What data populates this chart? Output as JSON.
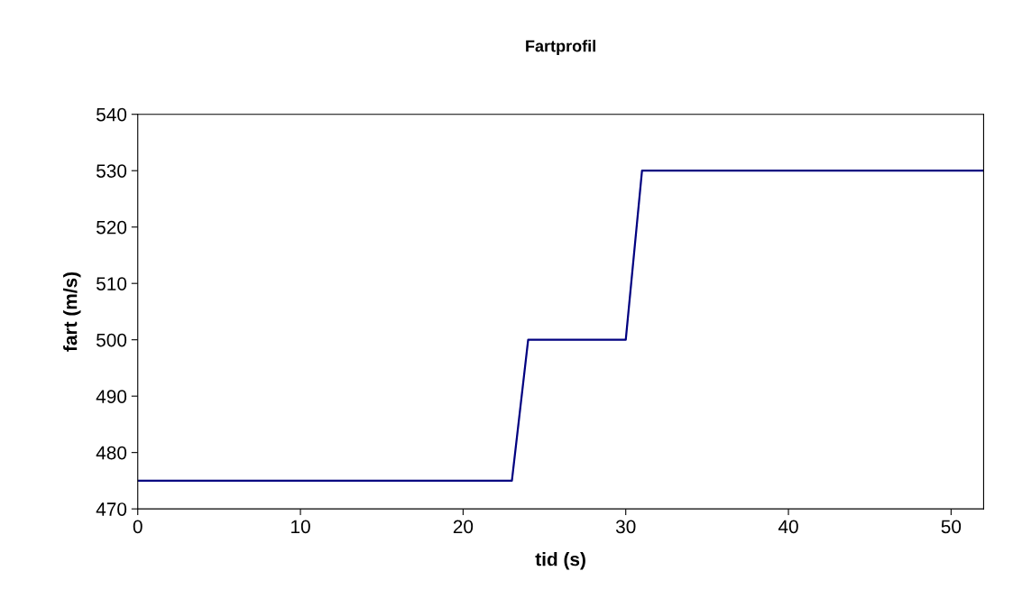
{
  "chart_data": {
    "type": "line",
    "title": "Fartprofil",
    "xlabel": "tid (s)",
    "ylabel": "fart (m/s)",
    "series": [
      {
        "color": "#000080",
        "x": [
          0,
          23,
          24,
          30,
          31,
          52
        ],
        "values": [
          475,
          475,
          500,
          500,
          530,
          530
        ]
      }
    ],
    "xlim": [
      0,
      52
    ],
    "xticks": [
      0,
      10,
      20,
      30,
      40,
      50
    ],
    "ylim": [
      470,
      540
    ],
    "yticks": [
      470,
      480,
      490,
      500,
      510,
      520,
      530,
      540
    ],
    "grid": false,
    "legend": false,
    "marker": "none",
    "line_style": "solid"
  }
}
